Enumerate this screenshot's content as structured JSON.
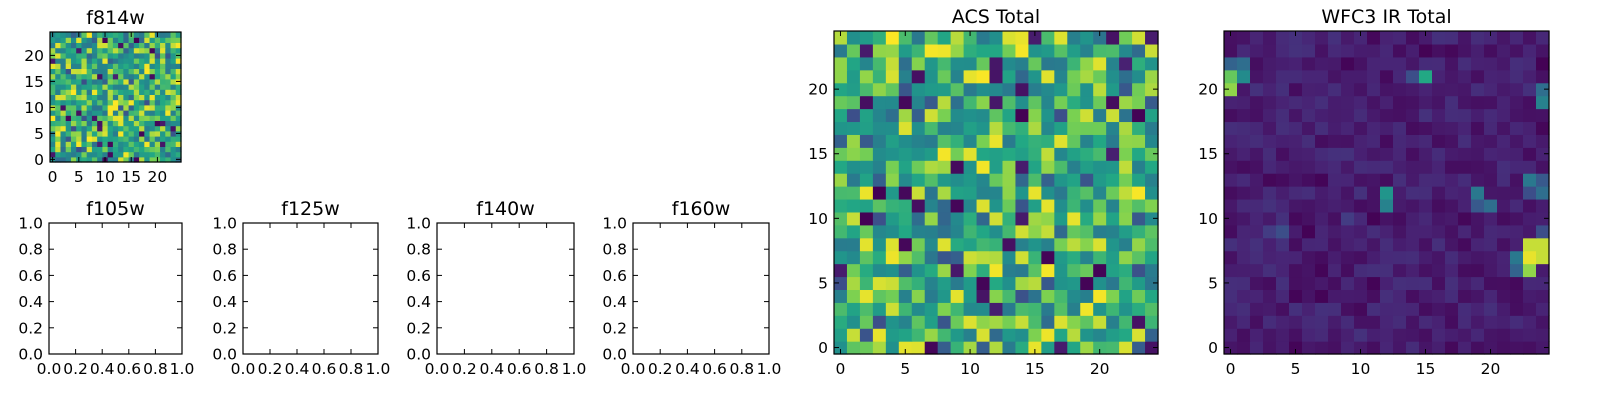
{
  "chart_data": [
    {
      "type": "heatmap",
      "title": "f814w",
      "image_size": [
        25,
        25
      ],
      "x_ticks": [
        "0",
        "5",
        "10",
        "15",
        "20"
      ],
      "y_ticks": [
        "0",
        "5",
        "10",
        "15",
        "20"
      ],
      "colormap": "viridis",
      "noise_level": "high",
      "seed": 11
    },
    {
      "type": "empty",
      "title": "f105w",
      "xlim": [
        0,
        1
      ],
      "ylim": [
        0,
        1
      ],
      "x_ticks": [
        "0.0",
        "0.2",
        "0.4",
        "0.6",
        "0.8",
        "1.0"
      ],
      "y_ticks": [
        "0.0",
        "0.2",
        "0.4",
        "0.6",
        "0.8",
        "1.0"
      ]
    },
    {
      "type": "empty",
      "title": "f125w",
      "xlim": [
        0,
        1
      ],
      "ylim": [
        0,
        1
      ],
      "x_ticks": [
        "0.0",
        "0.2",
        "0.4",
        "0.6",
        "0.8",
        "1.0"
      ],
      "y_ticks": [
        "0.0",
        "0.2",
        "0.4",
        "0.6",
        "0.8",
        "1.0"
      ]
    },
    {
      "type": "empty",
      "title": "f140w",
      "xlim": [
        0,
        1
      ],
      "ylim": [
        0,
        1
      ],
      "x_ticks": [
        "0.0",
        "0.2",
        "0.4",
        "0.6",
        "0.8",
        "1.0"
      ],
      "y_ticks": [
        "0.0",
        "0.2",
        "0.4",
        "0.6",
        "0.8",
        "1.0"
      ]
    },
    {
      "type": "empty",
      "title": "f160w",
      "xlim": [
        0,
        1
      ],
      "ylim": [
        0,
        1
      ],
      "x_ticks": [
        "0.0",
        "0.2",
        "0.4",
        "0.6",
        "0.8",
        "1.0"
      ],
      "y_ticks": [
        "0.0",
        "0.2",
        "0.4",
        "0.6",
        "0.8",
        "1.0"
      ]
    },
    {
      "type": "heatmap",
      "title": "ACS Total",
      "image_size": [
        25,
        25
      ],
      "x_ticks": [
        "0",
        "5",
        "10",
        "15",
        "20"
      ],
      "y_ticks": [
        "0",
        "5",
        "10",
        "15",
        "20"
      ],
      "colormap": "viridis",
      "noise_level": "high",
      "seed": 29
    },
    {
      "type": "heatmap",
      "title": "WFC3 IR Total",
      "image_size": [
        25,
        25
      ],
      "x_ticks": [
        "0",
        "5",
        "10",
        "15",
        "20"
      ],
      "y_ticks": [
        "0",
        "5",
        "10",
        "15",
        "20"
      ],
      "colormap": "viridis",
      "noise_level": "low",
      "seed": 53,
      "bright_pixels": [
        {
          "x": 0,
          "y": 21,
          "v": 0.85
        },
        {
          "x": 0,
          "y": 20,
          "v": 0.9
        },
        {
          "x": 0,
          "y": 22,
          "v": 0.4
        },
        {
          "x": 1,
          "y": 21,
          "v": 0.6
        },
        {
          "x": 1,
          "y": 22,
          "v": 0.45
        },
        {
          "x": 15,
          "y": 21,
          "v": 0.75
        },
        {
          "x": 14,
          "y": 21,
          "v": 0.3
        },
        {
          "x": 12,
          "y": 12,
          "v": 0.65
        },
        {
          "x": 12,
          "y": 11,
          "v": 0.55
        },
        {
          "x": 19,
          "y": 12,
          "v": 0.5
        },
        {
          "x": 20,
          "y": 11,
          "v": 0.45
        },
        {
          "x": 19,
          "y": 11,
          "v": 0.35
        },
        {
          "x": 23,
          "y": 13,
          "v": 0.5
        },
        {
          "x": 24,
          "y": 13,
          "v": 0.35
        },
        {
          "x": 24,
          "y": 12,
          "v": 0.45
        },
        {
          "x": 23,
          "y": 12,
          "v": 0.3
        },
        {
          "x": 24,
          "y": 19,
          "v": 0.55
        },
        {
          "x": 24,
          "y": 20,
          "v": 0.45
        },
        {
          "x": 23,
          "y": 8,
          "v": 0.95
        },
        {
          "x": 24,
          "y": 8,
          "v": 0.95
        },
        {
          "x": 23,
          "y": 7,
          "v": 0.98
        },
        {
          "x": 24,
          "y": 7,
          "v": 0.95
        },
        {
          "x": 23,
          "y": 6,
          "v": 0.9
        },
        {
          "x": 22,
          "y": 7,
          "v": 0.5
        },
        {
          "x": 22,
          "y": 6,
          "v": 0.4
        },
        {
          "x": 24,
          "y": 9,
          "v": 0.3
        },
        {
          "x": 4,
          "y": 9,
          "v": 0.3
        },
        {
          "x": 3,
          "y": 9,
          "v": 0.22
        },
        {
          "x": 9,
          "y": 10,
          "v": 0.22
        }
      ]
    }
  ]
}
